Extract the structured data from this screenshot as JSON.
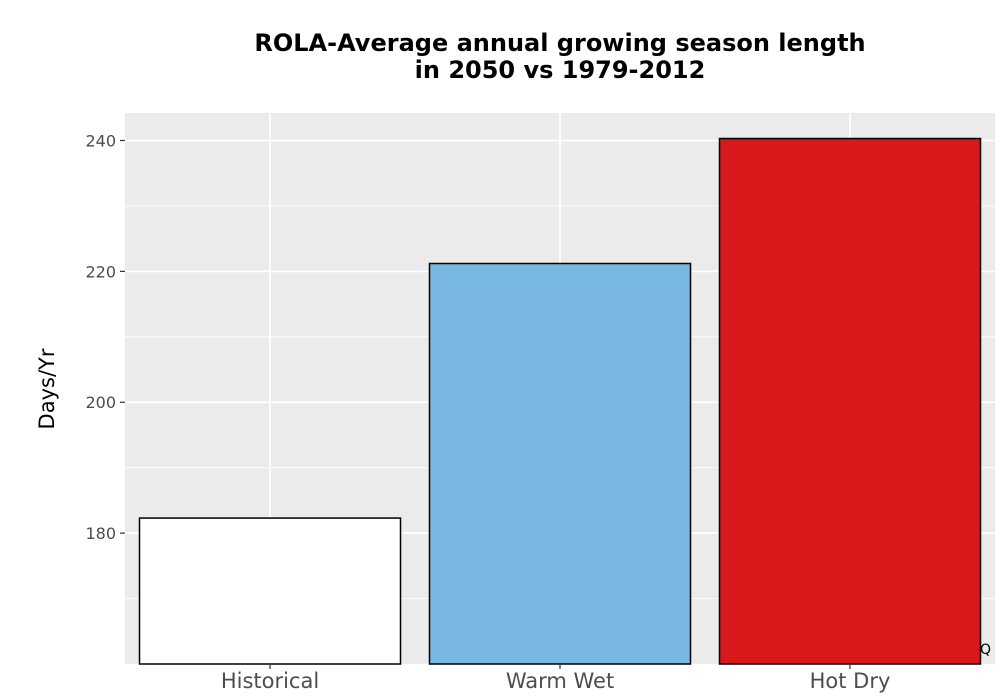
{
  "chart_data": {
    "type": "bar",
    "title": "ROLA-Average annual growing season length",
    "subtitle": "in 2050 vs 1979-2012",
    "xlabel": "",
    "ylabel": "Days/Yr",
    "categories": [
      "Historical",
      "Warm Wet",
      "Hot Dry"
    ],
    "values": [
      182.3,
      221.2,
      240.3
    ],
    "colors": [
      "#ffffff",
      "#79b8e1",
      "#d7191c"
    ],
    "bar_outline": "#000000",
    "ylim": [
      160,
      244.2
    ],
    "yticks": [
      180,
      200,
      220,
      240
    ],
    "grid": true,
    "panel_background": "#ebebeb",
    "legend": "none",
    "annotation": "Q"
  }
}
